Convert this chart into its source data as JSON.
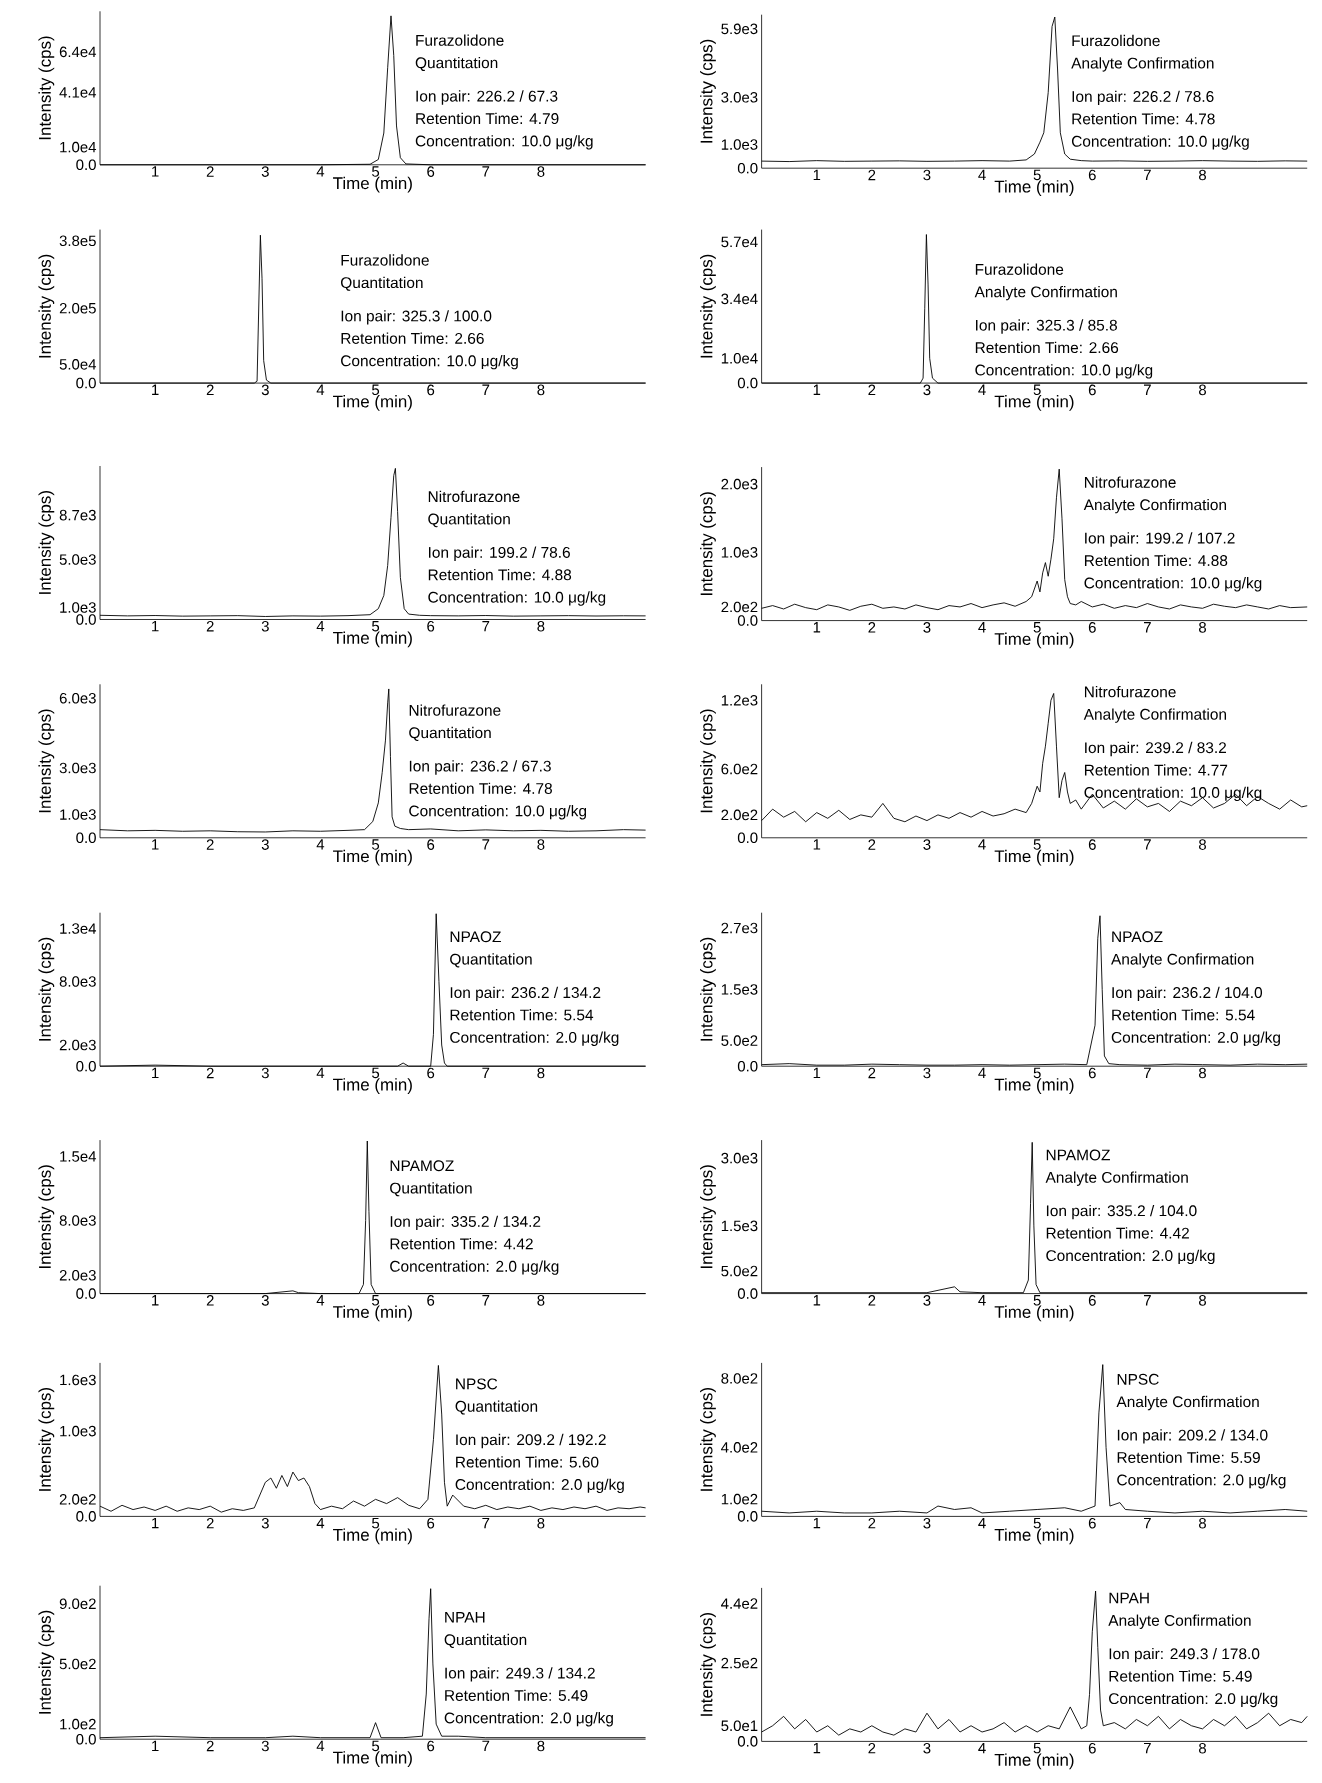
{
  "chart_data": [
    {
      "type": "line",
      "color": "#000000",
      "xlabel": "Time (min)",
      "ylabel": "Intensity (cps)",
      "annotations": [
        "Furazolidone",
        "Quantitation",
        "Ion pair: 226.2 / 67.3",
        "Retention Time: 4.79",
        "Concentration: 10.0 μg/kg"
      ],
      "xlim": [
        0,
        9.9
      ],
      "ylim": [
        0,
        87000
      ],
      "xticks": [
        1,
        2,
        3,
        4,
        5,
        6,
        7,
        8
      ],
      "yticks": [
        {
          "value": 0,
          "label": "0.0"
        },
        {
          "value": 10000,
          "label": "1.0e4"
        },
        {
          "value": 41000,
          "label": "4.1e4"
        },
        {
          "value": 64000,
          "label": "6.4e4"
        }
      ],
      "x": [
        0,
        1,
        2,
        3,
        4,
        4.9,
        5.05,
        5.15,
        5.22,
        5.28,
        5.33,
        5.38,
        5.45,
        5.55,
        6,
        7,
        8,
        9.9
      ],
      "values": [
        0,
        0,
        0,
        0,
        0,
        300,
        3000,
        18000,
        55000,
        84400,
        62000,
        22000,
        4000,
        500,
        0,
        0,
        0,
        0
      ]
    },
    {
      "type": "line",
      "color": "#000000",
      "xlabel": "Time (min)",
      "ylabel": "Intensity (cps)",
      "annotations": [
        "Furazolidone",
        "Analyte Confirmation",
        "Ion pair: 226.2 / 78.6",
        "Retention Time: 4.78",
        "Concentration: 10.0 μg/kg"
      ],
      "xlim": [
        0,
        9.9
      ],
      "ylim": [
        0,
        6500
      ],
      "xticks": [
        1,
        2,
        3,
        4,
        5,
        6,
        7,
        8
      ],
      "yticks": [
        {
          "value": 0,
          "label": "0.0"
        },
        {
          "value": 1000,
          "label": "1.0e3"
        },
        {
          "value": 3000,
          "label": "3.0e3"
        },
        {
          "value": 5900,
          "label": "5.9e3"
        }
      ],
      "x": [
        0,
        0.5,
        1,
        1.5,
        2,
        2.5,
        3,
        3.5,
        4,
        4.5,
        4.8,
        4.95,
        5.05,
        5.12,
        5.2,
        5.27,
        5.32,
        5.37,
        5.42,
        5.5,
        5.6,
        5.8,
        6,
        6.5,
        7,
        7.5,
        8,
        8.5,
        9,
        9.5,
        9.9
      ],
      "values": [
        300,
        280,
        320,
        290,
        300,
        310,
        290,
        300,
        320,
        300,
        350,
        600,
        1100,
        1500,
        3200,
        6000,
        6400,
        4200,
        1500,
        600,
        380,
        320,
        300,
        310,
        290,
        300,
        320,
        300,
        290,
        310,
        300
      ]
    },
    {
      "type": "line",
      "color": "#000000",
      "xlabel": "Time (min)",
      "ylabel": "Intensity (cps)",
      "annotations": [
        "Furazolidone",
        "Quantitation",
        "Ion pair: 325.3 / 100.0",
        "Retention Time: 2.66",
        "Concentration: 10.0 μg/kg"
      ],
      "xlim": [
        0,
        9.9
      ],
      "ylim": [
        0,
        410000
      ],
      "xticks": [
        1,
        2,
        3,
        4,
        5,
        6,
        7,
        8
      ],
      "yticks": [
        {
          "value": 0,
          "label": "0.0"
        },
        {
          "value": 50000,
          "label": "5.0e4"
        },
        {
          "value": 200000,
          "label": "2.0e5"
        },
        {
          "value": 380000,
          "label": "3.8e5"
        }
      ],
      "x": [
        0,
        1,
        2,
        2.8,
        2.85,
        2.88,
        2.91,
        2.94,
        2.97,
        3.02,
        3.1,
        4,
        5,
        6,
        7,
        8,
        9.9
      ],
      "values": [
        0,
        0,
        0,
        0,
        5000,
        200000,
        395000,
        280000,
        60000,
        8000,
        0,
        0,
        0,
        0,
        0,
        0,
        0
      ]
    },
    {
      "type": "line",
      "color": "#000000",
      "xlabel": "Time (min)",
      "ylabel": "Intensity (cps)",
      "annotations": [
        "Furazolidone",
        "Analyte Confirmation",
        "Ion pair: 325.3 / 85.8",
        "Retention Time: 2.66",
        "Concentration: 10.0 μg/kg"
      ],
      "xlim": [
        0,
        9.9
      ],
      "ylim": [
        0,
        62000
      ],
      "xticks": [
        1,
        2,
        3,
        4,
        5,
        6,
        7,
        8
      ],
      "yticks": [
        {
          "value": 0,
          "label": "0.0"
        },
        {
          "value": 10000,
          "label": "1.0e4"
        },
        {
          "value": 34000,
          "label": "3.4e4"
        },
        {
          "value": 57000,
          "label": "5.7e4"
        }
      ],
      "x": [
        0,
        1,
        2,
        2.88,
        2.93,
        2.96,
        2.99,
        3.02,
        3.05,
        3.1,
        3.2,
        4,
        5,
        6,
        7,
        8,
        9.9
      ],
      "values": [
        0,
        0,
        0,
        0,
        2000,
        30000,
        60000,
        40000,
        10000,
        2000,
        0,
        0,
        0,
        0,
        0,
        0,
        0
      ]
    },
    {
      "type": "line",
      "color": "#000000",
      "xlabel": "Time (min)",
      "ylabel": "Intensity (cps)",
      "annotations": [
        "Nitrofurazone",
        "Quantitation",
        "Ion pair: 199.2 / 78.6",
        "Retention Time: 4.88",
        "Concentration: 10.0 μg/kg"
      ],
      "xlim": [
        0,
        9.9
      ],
      "ylim": [
        0,
        12800
      ],
      "xticks": [
        1,
        2,
        3,
        4,
        5,
        6,
        7,
        8
      ],
      "yticks": [
        {
          "value": 0,
          "label": "0.0"
        },
        {
          "value": 1000,
          "label": "1.0e3"
        },
        {
          "value": 5000,
          "label": "5.0e3"
        },
        {
          "value": 8700,
          "label": "8.7e3"
        }
      ],
      "x": [
        0,
        0.5,
        1,
        1.5,
        2,
        2.5,
        3,
        3.5,
        4,
        4.5,
        4.9,
        5.05,
        5.15,
        5.22,
        5.28,
        5.33,
        5.36,
        5.4,
        5.45,
        5.52,
        5.6,
        5.8,
        6,
        6.5,
        7,
        7.5,
        8,
        8.5,
        9,
        9.5,
        9.9
      ],
      "values": [
        350,
        300,
        330,
        280,
        300,
        320,
        250,
        300,
        280,
        320,
        400,
        900,
        2000,
        4500,
        8500,
        12000,
        12600,
        9000,
        3500,
        900,
        450,
        350,
        320,
        300,
        330,
        280,
        300,
        320,
        290,
        310,
        300
      ]
    },
    {
      "type": "line",
      "color": "#000000",
      "xlabel": "Time (min)",
      "ylabel": "Intensity (cps)",
      "annotations": [
        "Nitrofurazone",
        "Analyte Confirmation",
        "Ion pair: 199.2 / 107.2",
        "Retention Time: 4.88",
        "Concentration: 10.0 μg/kg"
      ],
      "xlim": [
        0,
        9.9
      ],
      "ylim": [
        0,
        2250
      ],
      "xticks": [
        1,
        2,
        3,
        4,
        5,
        6,
        7,
        8
      ],
      "yticks": [
        {
          "value": 0,
          "label": "0.0"
        },
        {
          "value": 200,
          "label": "2.0e2"
        },
        {
          "value": 1000,
          "label": "1.0e3"
        },
        {
          "value": 2000,
          "label": "2.0e3"
        }
      ],
      "x": [
        0,
        0.2,
        0.4,
        0.6,
        0.8,
        1,
        1.2,
        1.4,
        1.6,
        1.8,
        2,
        2.2,
        2.4,
        2.6,
        2.8,
        3,
        3.2,
        3.4,
        3.6,
        3.8,
        4,
        4.2,
        4.4,
        4.6,
        4.8,
        4.9,
        5,
        5.05,
        5.1,
        5.15,
        5.2,
        5.25,
        5.3,
        5.35,
        5.4,
        5.45,
        5.5,
        5.55,
        5.6,
        5.7,
        5.8,
        6,
        6.2,
        6.4,
        6.6,
        6.8,
        7,
        7.2,
        7.4,
        7.6,
        7.8,
        8,
        8.2,
        8.4,
        8.6,
        8.8,
        9,
        9.2,
        9.4,
        9.6,
        9.9
      ],
      "values": [
        180,
        220,
        170,
        240,
        190,
        160,
        230,
        200,
        150,
        210,
        240,
        180,
        200,
        170,
        230,
        190,
        160,
        220,
        200,
        250,
        190,
        230,
        260,
        210,
        280,
        350,
        580,
        420,
        700,
        850,
        650,
        900,
        1200,
        1800,
        2220,
        1500,
        600,
        350,
        250,
        230,
        280,
        200,
        240,
        180,
        220,
        190,
        250,
        200,
        170,
        230,
        200,
        180,
        240,
        210,
        190,
        230,
        200,
        170,
        220,
        190,
        200
      ]
    },
    {
      "type": "line",
      "color": "#000000",
      "xlabel": "Time (min)",
      "ylabel": "Intensity (cps)",
      "annotations": [
        "Nitrofurazone",
        "Quantitation",
        "Ion pair: 236.2 / 67.3",
        "Retention Time: 4.78",
        "Concentration: 10.0 μg/kg"
      ],
      "xlim": [
        0,
        9.9
      ],
      "ylim": [
        0,
        6600
      ],
      "xticks": [
        1,
        2,
        3,
        4,
        5,
        6,
        7,
        8
      ],
      "yticks": [
        {
          "value": 0,
          "label": "0.0"
        },
        {
          "value": 1000,
          "label": "1.0e3"
        },
        {
          "value": 3000,
          "label": "3.0e3"
        },
        {
          "value": 6000,
          "label": "6.0e3"
        }
      ],
      "x": [
        0,
        0.5,
        1,
        1.5,
        2,
        2.5,
        3,
        3.5,
        4,
        4.5,
        4.8,
        4.95,
        5.05,
        5.12,
        5.18,
        5.22,
        5.24,
        5.27,
        5.3,
        5.35,
        5.45,
        5.6,
        6,
        6.5,
        7,
        7.5,
        8,
        8.5,
        9,
        9.5,
        9.9
      ],
      "values": [
        350,
        300,
        320,
        280,
        300,
        260,
        250,
        300,
        280,
        320,
        350,
        700,
        1500,
        2800,
        4200,
        5800,
        6400,
        3500,
        900,
        500,
        400,
        350,
        380,
        300,
        340,
        300,
        320,
        280,
        300,
        350,
        330
      ]
    },
    {
      "type": "line",
      "color": "#000000",
      "xlabel": "Time (min)",
      "ylabel": "Intensity (cps)",
      "annotations": [
        "Nitrofurazone",
        "Analyte Confirmation",
        "Ion pair: 239.2 / 83.2",
        "Retention Time: 4.77",
        "Concentration: 10.0 μg/kg"
      ],
      "xlim": [
        0,
        9.9
      ],
      "ylim": [
        0,
        1340
      ],
      "xticks": [
        1,
        2,
        3,
        4,
        5,
        6,
        7,
        8
      ],
      "yticks": [
        {
          "value": 0,
          "label": "0.0"
        },
        {
          "value": 200,
          "label": "2.0e2"
        },
        {
          "value": 600,
          "label": "6.0e2"
        },
        {
          "value": 1200,
          "label": "1.2e3"
        }
      ],
      "x": [
        0,
        0.2,
        0.4,
        0.6,
        0.8,
        1,
        1.2,
        1.4,
        1.6,
        1.8,
        2,
        2.2,
        2.4,
        2.6,
        2.8,
        3,
        3.2,
        3.4,
        3.6,
        3.8,
        4,
        4.2,
        4.4,
        4.6,
        4.8,
        4.9,
        5,
        5.05,
        5.1,
        5.15,
        5.2,
        5.25,
        5.3,
        5.35,
        5.4,
        5.45,
        5.5,
        5.55,
        5.6,
        5.7,
        5.8,
        6,
        6.2,
        6.4,
        6.6,
        6.8,
        7,
        7.2,
        7.4,
        7.6,
        7.8,
        8,
        8.2,
        8.4,
        8.6,
        8.8,
        9,
        9.2,
        9.4,
        9.6,
        9.8,
        9.9
      ],
      "values": [
        150,
        250,
        180,
        230,
        140,
        220,
        170,
        240,
        160,
        200,
        180,
        300,
        170,
        140,
        190,
        150,
        200,
        170,
        220,
        180,
        230,
        190,
        210,
        250,
        220,
        300,
        450,
        400,
        650,
        800,
        1000,
        1200,
        1260,
        800,
        350,
        500,
        570,
        400,
        300,
        330,
        250,
        380,
        260,
        320,
        250,
        340,
        270,
        300,
        230,
        320,
        280,
        350,
        260,
        300,
        380,
        280,
        360,
        300,
        250,
        330,
        270,
        280
      ]
    },
    {
      "type": "line",
      "color": "#000000",
      "xlabel": "Time (min)",
      "ylabel": "Intensity (cps)",
      "annotations": [
        "NPAOZ",
        "Quantitation",
        "Ion pair: 236.2 / 134.2",
        "Retention Time: 5.54",
        "Concentration: 2.0 μg/kg"
      ],
      "xlim": [
        0,
        9.9
      ],
      "ylim": [
        0,
        14500
      ],
      "xticks": [
        1,
        2,
        3,
        4,
        5,
        6,
        7,
        8
      ],
      "yticks": [
        {
          "value": 0,
          "label": "0.0"
        },
        {
          "value": 2000,
          "label": "2.0e3"
        },
        {
          "value": 8000,
          "label": "8.0e3"
        },
        {
          "value": 13000,
          "label": "1.3e4"
        }
      ],
      "x": [
        0,
        1,
        2,
        3,
        4,
        5,
        5.4,
        5.5,
        5.6,
        6,
        6.05,
        6.1,
        6.15,
        6.2,
        6.25,
        6.3,
        6.4,
        7,
        8,
        9,
        9.9
      ],
      "values": [
        0,
        100,
        0,
        0,
        0,
        0,
        0,
        300,
        0,
        0,
        3000,
        14400,
        8000,
        2000,
        300,
        0,
        0,
        0,
        0,
        0,
        0
      ]
    },
    {
      "type": "line",
      "color": "#000000",
      "xlabel": "Time (min)",
      "ylabel": "Intensity (cps)",
      "annotations": [
        "NPAOZ",
        "Analyte Confirmation",
        "Ion pair: 236.2 / 104.0",
        "Retention Time: 5.54",
        "Concentration: 2.0 μg/kg"
      ],
      "xlim": [
        0,
        9.9
      ],
      "ylim": [
        0,
        3000
      ],
      "xticks": [
        1,
        2,
        3,
        4,
        5,
        6,
        7,
        8
      ],
      "yticks": [
        {
          "value": 0,
          "label": "0.0"
        },
        {
          "value": 500,
          "label": "5.0e2"
        },
        {
          "value": 1500,
          "label": "1.5e3"
        },
        {
          "value": 2700,
          "label": "2.7e3"
        }
      ],
      "x": [
        0,
        0.5,
        1,
        1.5,
        2,
        2.5,
        3,
        3.5,
        4,
        4.5,
        5,
        5.5,
        5.9,
        6.05,
        6.1,
        6.14,
        6.18,
        6.22,
        6.3,
        6.5,
        7,
        7.5,
        8,
        8.5,
        9,
        9.5,
        9.9
      ],
      "values": [
        30,
        50,
        20,
        20,
        40,
        30,
        20,
        20,
        30,
        20,
        30,
        40,
        30,
        800,
        2500,
        2940,
        1500,
        200,
        50,
        30,
        20,
        40,
        30,
        20,
        40,
        30,
        40
      ]
    },
    {
      "type": "line",
      "color": "#000000",
      "xlabel": "Time (min)",
      "ylabel": "Intensity (cps)",
      "annotations": [
        "NPAMOZ",
        "Quantitation",
        "Ion pair: 335.2 / 134.2",
        "Retention Time: 4.42",
        "Concentration: 2.0 μg/kg"
      ],
      "xlim": [
        0,
        9.9
      ],
      "ylim": [
        0,
        16800
      ],
      "xticks": [
        1,
        2,
        3,
        4,
        5,
        6,
        7,
        8
      ],
      "yticks": [
        {
          "value": 0,
          "label": "0.0"
        },
        {
          "value": 2000,
          "label": "2.0e3"
        },
        {
          "value": 8000,
          "label": "8.0e3"
        },
        {
          "value": 15000,
          "label": "1.5e4"
        }
      ],
      "x": [
        0,
        1,
        2,
        3,
        3.5,
        3.6,
        4,
        4.7,
        4.78,
        4.82,
        4.85,
        4.88,
        4.92,
        5,
        6,
        7,
        8,
        9,
        9.9
      ],
      "values": [
        0,
        0,
        0,
        0,
        300,
        100,
        0,
        0,
        1000,
        8000,
        16700,
        9000,
        1000,
        0,
        0,
        0,
        0,
        0,
        0
      ]
    },
    {
      "type": "line",
      "color": "#000000",
      "xlabel": "Time (min)",
      "ylabel": "Intensity (cps)",
      "annotations": [
        "NPAMOZ",
        "Analyte Confirmation",
        "Ion pair: 335.2 / 104.0",
        "Retention Time: 4.42",
        "Concentration: 2.0 μg/kg"
      ],
      "xlim": [
        0,
        9.9
      ],
      "ylim": [
        0,
        3400
      ],
      "xticks": [
        1,
        2,
        3,
        4,
        5,
        6,
        7,
        8
      ],
      "yticks": [
        {
          "value": 0,
          "label": "0.0"
        },
        {
          "value": 500,
          "label": "5.0e2"
        },
        {
          "value": 1500,
          "label": "1.5e3"
        },
        {
          "value": 3000,
          "label": "3.0e3"
        }
      ],
      "x": [
        0,
        1,
        2,
        3,
        3.5,
        3.6,
        4,
        4.75,
        4.84,
        4.88,
        4.91,
        4.94,
        4.98,
        5.05,
        6,
        7,
        8,
        9,
        9.9
      ],
      "values": [
        20,
        20,
        20,
        20,
        150,
        40,
        20,
        20,
        300,
        2000,
        3350,
        1500,
        200,
        20,
        20,
        20,
        20,
        20,
        20
      ]
    },
    {
      "type": "line",
      "color": "#000000",
      "xlabel": "Time (min)",
      "ylabel": "Intensity (cps)",
      "annotations": [
        "NPSC",
        "Quantitation",
        "Ion pair: 209.2 / 192.2",
        "Retention Time: 5.60",
        "Concentration: 2.0 μg/kg"
      ],
      "xlim": [
        0,
        9.9
      ],
      "ylim": [
        0,
        1800
      ],
      "xticks": [
        1,
        2,
        3,
        4,
        5,
        6,
        7,
        8
      ],
      "yticks": [
        {
          "value": 0,
          "label": "0.0"
        },
        {
          "value": 200,
          "label": "2.0e2"
        },
        {
          "value": 1000,
          "label": "1.0e3"
        },
        {
          "value": 1600,
          "label": "1.6e3"
        }
      ],
      "x": [
        0,
        0.2,
        0.4,
        0.6,
        0.8,
        1,
        1.2,
        1.4,
        1.6,
        1.8,
        2,
        2.2,
        2.4,
        2.6,
        2.8,
        3,
        3.1,
        3.2,
        3.3,
        3.4,
        3.5,
        3.6,
        3.7,
        3.8,
        3.9,
        4,
        4.2,
        4.4,
        4.6,
        4.8,
        5,
        5.2,
        5.4,
        5.6,
        5.8,
        5.95,
        6.05,
        6.14,
        6.2,
        6.25,
        6.3,
        6.4,
        6.6,
        6.8,
        7,
        7.2,
        7.4,
        7.6,
        7.8,
        8,
        8.2,
        8.4,
        8.6,
        8.8,
        9,
        9.2,
        9.4,
        9.6,
        9.8,
        9.9
      ],
      "values": [
        120,
        60,
        130,
        80,
        110,
        70,
        120,
        60,
        100,
        80,
        120,
        50,
        90,
        70,
        100,
        400,
        450,
        330,
        480,
        350,
        520,
        420,
        450,
        350,
        150,
        80,
        120,
        90,
        180,
        120,
        200,
        150,
        220,
        130,
        90,
        200,
        900,
        1770,
        1200,
        400,
        120,
        250,
        120,
        90,
        130,
        80,
        110,
        90,
        120,
        70,
        100,
        80,
        110,
        90,
        120,
        70,
        100,
        90,
        110,
        100
      ]
    },
    {
      "type": "line",
      "color": "#000000",
      "xlabel": "Time (min)",
      "ylabel": "Intensity (cps)",
      "annotations": [
        "NPSC",
        "Analyte Confirmation",
        "Ion pair: 209.2 / 134.0",
        "Retention Time: 5.59",
        "Concentration: 2.0 μg/kg"
      ],
      "xlim": [
        0,
        9.9
      ],
      "ylim": [
        0,
        890
      ],
      "xticks": [
        1,
        2,
        3,
        4,
        5,
        6,
        7,
        8
      ],
      "yticks": [
        {
          "value": 0,
          "label": "0.0"
        },
        {
          "value": 100,
          "label": "1.0e2"
        },
        {
          "value": 400,
          "label": "4.0e2"
        },
        {
          "value": 800,
          "label": "8.0e2"
        }
      ],
      "x": [
        0,
        0.5,
        1,
        1.5,
        2,
        2.5,
        3,
        3.2,
        3.5,
        3.8,
        4,
        4.5,
        5,
        5.5,
        5.8,
        6.05,
        6.12,
        6.19,
        6.25,
        6.32,
        6.5,
        6.6,
        7,
        7.5,
        8,
        8.5,
        9,
        9.5,
        9.9
      ],
      "values": [
        30,
        20,
        30,
        20,
        20,
        30,
        20,
        60,
        40,
        50,
        20,
        30,
        40,
        50,
        30,
        60,
        600,
        880,
        400,
        60,
        80,
        40,
        30,
        20,
        30,
        20,
        30,
        40,
        30
      ]
    },
    {
      "type": "line",
      "color": "#000000",
      "xlabel": "Time (min)",
      "ylabel": "Intensity (cps)",
      "annotations": [
        "NPAH",
        "Quantitation",
        "Ion pair: 249.3 / 134.2",
        "Retention Time: 5.49",
        "Concentration: 2.0 μg/kg"
      ],
      "xlim": [
        0,
        9.9
      ],
      "ylim": [
        0,
        1020
      ],
      "xticks": [
        1,
        2,
        3,
        4,
        5,
        6,
        7,
        8
      ],
      "yticks": [
        {
          "value": 0,
          "label": "0.0"
        },
        {
          "value": 100,
          "label": "1.0e2"
        },
        {
          "value": 500,
          "label": "5.0e2"
        },
        {
          "value": 900,
          "label": "9.0e2"
        }
      ],
      "x": [
        0,
        1,
        2,
        3,
        3.5,
        4,
        4.5,
        4.9,
        5,
        5.1,
        5.5,
        5.85,
        5.92,
        5.97,
        6,
        6.04,
        6.1,
        6.2,
        6.5,
        7,
        8,
        9,
        9.9
      ],
      "values": [
        10,
        20,
        10,
        10,
        20,
        10,
        10,
        10,
        110,
        10,
        10,
        20,
        300,
        800,
        1000,
        500,
        100,
        20,
        20,
        10,
        10,
        10,
        10
      ]
    },
    {
      "type": "line",
      "color": "#000000",
      "xlabel": "Time (min)",
      "ylabel": "Intensity (cps)",
      "annotations": [
        "NPAH",
        "Analyte Confirmation",
        "Ion pair: 249.3 / 178.0",
        "Retention Time: 5.49",
        "Concentration: 2.0 μg/kg"
      ],
      "xlim": [
        0,
        9.9
      ],
      "ylim": [
        0,
        490
      ],
      "xticks": [
        1,
        2,
        3,
        4,
        5,
        6,
        7,
        8
      ],
      "yticks": [
        {
          "value": 0,
          "label": "0.0"
        },
        {
          "value": 50,
          "label": "5.0e1"
        },
        {
          "value": 250,
          "label": "2.5e2"
        },
        {
          "value": 440,
          "label": "4.4e2"
        }
      ],
      "x": [
        0,
        0.2,
        0.4,
        0.6,
        0.8,
        1,
        1.2,
        1.4,
        1.6,
        1.8,
        2,
        2.2,
        2.4,
        2.6,
        2.8,
        3,
        3.2,
        3.4,
        3.6,
        3.8,
        4,
        4.2,
        4.4,
        4.6,
        4.8,
        5,
        5.2,
        5.4,
        5.6,
        5.8,
        5.9,
        5.95,
        6,
        6.06,
        6.1,
        6.15,
        6.2,
        6.4,
        6.6,
        6.8,
        7,
        7.2,
        7.4,
        7.6,
        7.8,
        8,
        8.2,
        8.4,
        8.6,
        8.8,
        9,
        9.2,
        9.4,
        9.6,
        9.8,
        9.9
      ],
      "values": [
        30,
        50,
        80,
        40,
        70,
        30,
        50,
        20,
        40,
        30,
        50,
        30,
        20,
        40,
        30,
        90,
        40,
        70,
        30,
        50,
        30,
        40,
        60,
        30,
        50,
        30,
        50,
        40,
        110,
        40,
        50,
        150,
        350,
        480,
        300,
        100,
        50,
        60,
        40,
        70,
        50,
        80,
        40,
        70,
        50,
        40,
        70,
        50,
        80,
        40,
        60,
        90,
        50,
        70,
        60,
        80
      ]
    }
  ]
}
